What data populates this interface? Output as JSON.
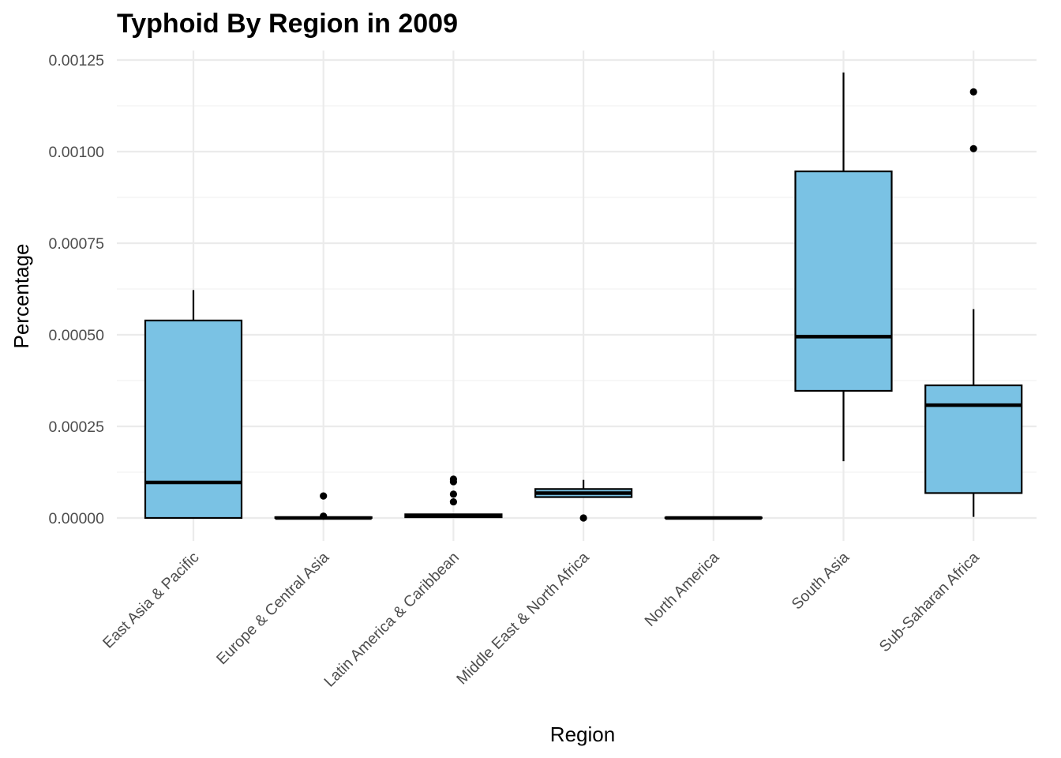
{
  "chart_data": {
    "type": "boxplot",
    "title": "Typhoid By Region in 2009",
    "xlabel": "Region",
    "ylabel": "Percentage",
    "ylim": [
      -4e-05,
      0.00128
    ],
    "y_ticks": [
      0,
      0.00025,
      0.0005,
      0.00075,
      0.001,
      0.00125
    ],
    "y_tick_labels": [
      "0.00000",
      "0.00025",
      "0.00050",
      "0.00075",
      "0.00100",
      "0.00125"
    ],
    "grid": true,
    "legend": "none",
    "box_fill": "#7AC2E4",
    "line_color": "#000000",
    "categories": [
      "East Asia & Pacific",
      "Europe & Central Asia",
      "Latin America & Caribbean",
      "Middle East & North Africa",
      "North America",
      "South Asia",
      "Sub-Saharan Africa"
    ],
    "boxes": [
      {
        "category": "East Asia & Pacific",
        "whisker_low": 0,
        "q1": 0,
        "median": 9.7e-05,
        "q3": 0.000539,
        "whisker_high": 0.000622,
        "outliers": []
      },
      {
        "category": "Europe & Central Asia",
        "whisker_low": 0,
        "q1": 0,
        "median": 0,
        "q3": 2e-06,
        "whisker_high": 2e-06,
        "outliers": [
          6e-05,
          5e-06
        ]
      },
      {
        "category": "Latin America & Caribbean",
        "whisker_low": 0,
        "q1": 2e-06,
        "median": 7e-06,
        "q3": 1e-05,
        "whisker_high": 1e-05,
        "outliers": [
          0.000106,
          9.9e-05,
          6.5e-05,
          4.4e-05
        ]
      },
      {
        "category": "Middle East & North Africa",
        "whisker_low": 5.7e-05,
        "q1": 5.7e-05,
        "median": 6.8e-05,
        "q3": 7.9e-05,
        "whisker_high": 0.000104,
        "outliers": [
          0
        ]
      },
      {
        "category": "North America",
        "whisker_low": 0,
        "q1": 0,
        "median": 0,
        "q3": 1e-06,
        "whisker_high": 1e-06,
        "outliers": []
      },
      {
        "category": "South Asia",
        "whisker_low": 0.000155,
        "q1": 0.000347,
        "median": 0.000495,
        "q3": 0.000946,
        "whisker_high": 0.001216,
        "outliers": []
      },
      {
        "category": "Sub-Saharan Africa",
        "whisker_low": 3e-06,
        "q1": 6.8e-05,
        "median": 0.000308,
        "q3": 0.000362,
        "whisker_high": 0.00057,
        "outliers": [
          0.001163,
          0.001008
        ]
      }
    ]
  }
}
